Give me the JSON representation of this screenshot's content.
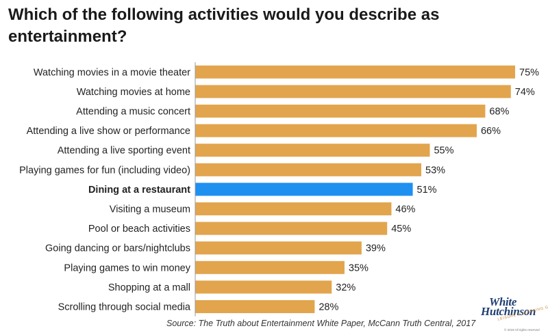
{
  "chart_data": {
    "type": "bar",
    "orientation": "horizontal",
    "title": "Which of the following activities would you describe as entertainment?",
    "categories": [
      "Watching movies in a movie theater",
      "Watching movies at home",
      "Attending a music concert",
      "Attending a live show or performance",
      "Attending a live sporting event",
      "Playing games for fun (including video)",
      "Dining at a restaurant",
      "Visiting a museum",
      "Pool or beach activities",
      "Going dancing or bars/nightclubs",
      "Playing games to win money",
      "Shopping at a mall",
      "Scrolling through social media"
    ],
    "values": [
      75,
      74,
      68,
      66,
      55,
      53,
      51,
      46,
      45,
      39,
      35,
      32,
      28
    ],
    "value_labels": [
      "75%",
      "74%",
      "68%",
      "66%",
      "55%",
      "53%",
      "51%",
      "46%",
      "45%",
      "39%",
      "35%",
      "32%",
      "28%"
    ],
    "highlight": "Dining at a restaurant",
    "xlim": [
      0,
      75
    ],
    "grid": false,
    "colors": {
      "bar": "#E2A54D",
      "highlight": "#1E90F0",
      "axis": "#999999"
    }
  },
  "source": "Source: The Truth about Entertainment White Paper, McCann Truth Central, 2017",
  "logo": {
    "line1": "White",
    "line2": "Hutchinson",
    "tagline": "LEISURE & LEARNING GROUP",
    "copyright": "© 2019 All rights reserved"
  }
}
